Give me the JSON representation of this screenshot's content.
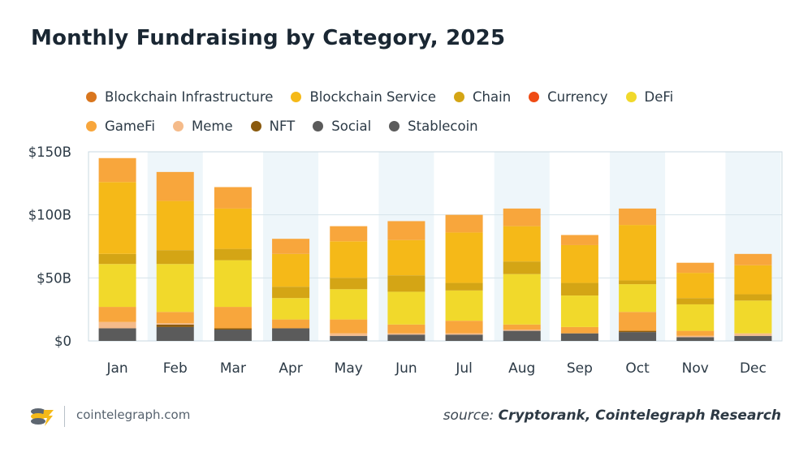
{
  "chart_data": {
    "type": "bar",
    "stacked": true,
    "title": "Monthly Fundraising by Category, 2025",
    "xlabel": "",
    "ylabel": "",
    "ylim": [
      0,
      150
    ],
    "y_ticks": [
      {
        "value": 0,
        "label": "$0"
      },
      {
        "value": 50,
        "label": "$50B"
      },
      {
        "value": 100,
        "label": "$100B"
      },
      {
        "value": 150,
        "label": "$150B"
      }
    ],
    "categories": [
      "Jan",
      "Feb",
      "Mar",
      "Apr",
      "May",
      "Jun",
      "Jul",
      "Aug",
      "Sep",
      "Oct",
      "Nov",
      "Dec"
    ],
    "legend_position": "top-left",
    "series": [
      {
        "name": "Stablecoin",
        "color": "#5b5b5b",
        "values": [
          10,
          11,
          9,
          10,
          4,
          5,
          5,
          8,
          6,
          7,
          3,
          4
        ]
      },
      {
        "name": "Social",
        "color": "#6e6e6e",
        "values": [
          0,
          0,
          0,
          0,
          0,
          0,
          0,
          0,
          0,
          0,
          0,
          0
        ]
      },
      {
        "name": "NFT",
        "color": "#8a5a0e",
        "values": [
          0,
          2,
          1,
          0,
          0,
          0,
          0,
          0,
          0,
          1,
          0,
          0
        ]
      },
      {
        "name": "Meme",
        "color": "#f5bb8a",
        "values": [
          5,
          1,
          0,
          0,
          2,
          1,
          1,
          1,
          0,
          0,
          1,
          2
        ]
      },
      {
        "name": "GameFi",
        "color": "#f8a63c",
        "values": [
          12,
          9,
          17,
          7,
          11,
          7,
          10,
          4,
          5,
          15,
          4,
          0
        ]
      },
      {
        "name": "DeFi",
        "color": "#f1d92b",
        "values": [
          34,
          38,
          37,
          17,
          24,
          26,
          24,
          40,
          25,
          22,
          21,
          26
        ]
      },
      {
        "name": "Currency",
        "color": "#ef4b14",
        "values": [
          0,
          0,
          0,
          0,
          0,
          0,
          0,
          0,
          0,
          0,
          0,
          0
        ]
      },
      {
        "name": "Chain",
        "color": "#d4a515",
        "values": [
          8,
          11,
          9,
          9,
          9,
          13,
          6,
          10,
          10,
          3,
          5,
          5
        ]
      },
      {
        "name": "Blockchain Service",
        "color": "#f5b918",
        "values": [
          57,
          39,
          32,
          26,
          29,
          28,
          40,
          28,
          30,
          44,
          20,
          23
        ]
      },
      {
        "name": "Blockchain Infrastructure",
        "color": "#f8a63c",
        "values": [
          19,
          23,
          17,
          12,
          12,
          15,
          14,
          14,
          8,
          13,
          8,
          9
        ]
      }
    ]
  },
  "legend": [
    {
      "label": "Blockchain Infrastructure",
      "color": "#d9761e"
    },
    {
      "label": "Blockchain Service",
      "color": "#f5b918"
    },
    {
      "label": "Chain",
      "color": "#d4a515"
    },
    {
      "label": "Currency",
      "color": "#ef4b14"
    },
    {
      "label": "DeFi",
      "color": "#f1d92b"
    },
    {
      "label": "GameFi",
      "color": "#f8a63c"
    },
    {
      "label": "Meme",
      "color": "#f5bb8a"
    },
    {
      "label": "NFT",
      "color": "#8a5a0e"
    },
    {
      "label": "Social",
      "color": "#5b5b5b"
    },
    {
      "label": "Stablecoin",
      "color": "#5b5b5b"
    }
  ],
  "footer": {
    "site": "cointelegraph.com",
    "source_prefix": "source: ",
    "source_text": "Cryptorank, Cointelegraph Research"
  },
  "colors": {
    "axis_text": "#2c3a46",
    "grid": "#d6e3ea",
    "band": "#eef6fa",
    "frame": "#c9d8e2"
  }
}
